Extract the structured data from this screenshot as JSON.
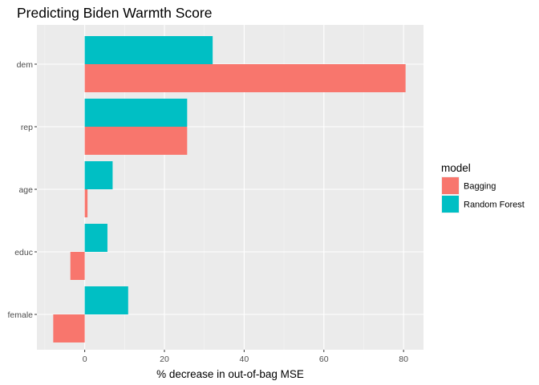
{
  "chart_data": {
    "type": "bar",
    "orientation": "horizontal",
    "title": "Predicting Biden Warmth Score",
    "xlabel": "% decrease in out-of-bag MSE",
    "ylabel": "",
    "categories": [
      "dem",
      "rep",
      "age",
      "educ",
      "female"
    ],
    "xlim": [
      -12,
      85
    ],
    "xticks": [
      0,
      20,
      40,
      60,
      80
    ],
    "grid": true,
    "legend": {
      "title": "model",
      "position": "right"
    },
    "series": [
      {
        "name": "Bagging",
        "color": "#F8766D",
        "values": [
          80.5,
          25.7,
          0.7,
          -3.6,
          -7.9
        ]
      },
      {
        "name": "Random Forest",
        "color": "#00BFC4",
        "values": [
          32.1,
          25.7,
          7.0,
          5.7,
          10.9
        ]
      }
    ]
  }
}
